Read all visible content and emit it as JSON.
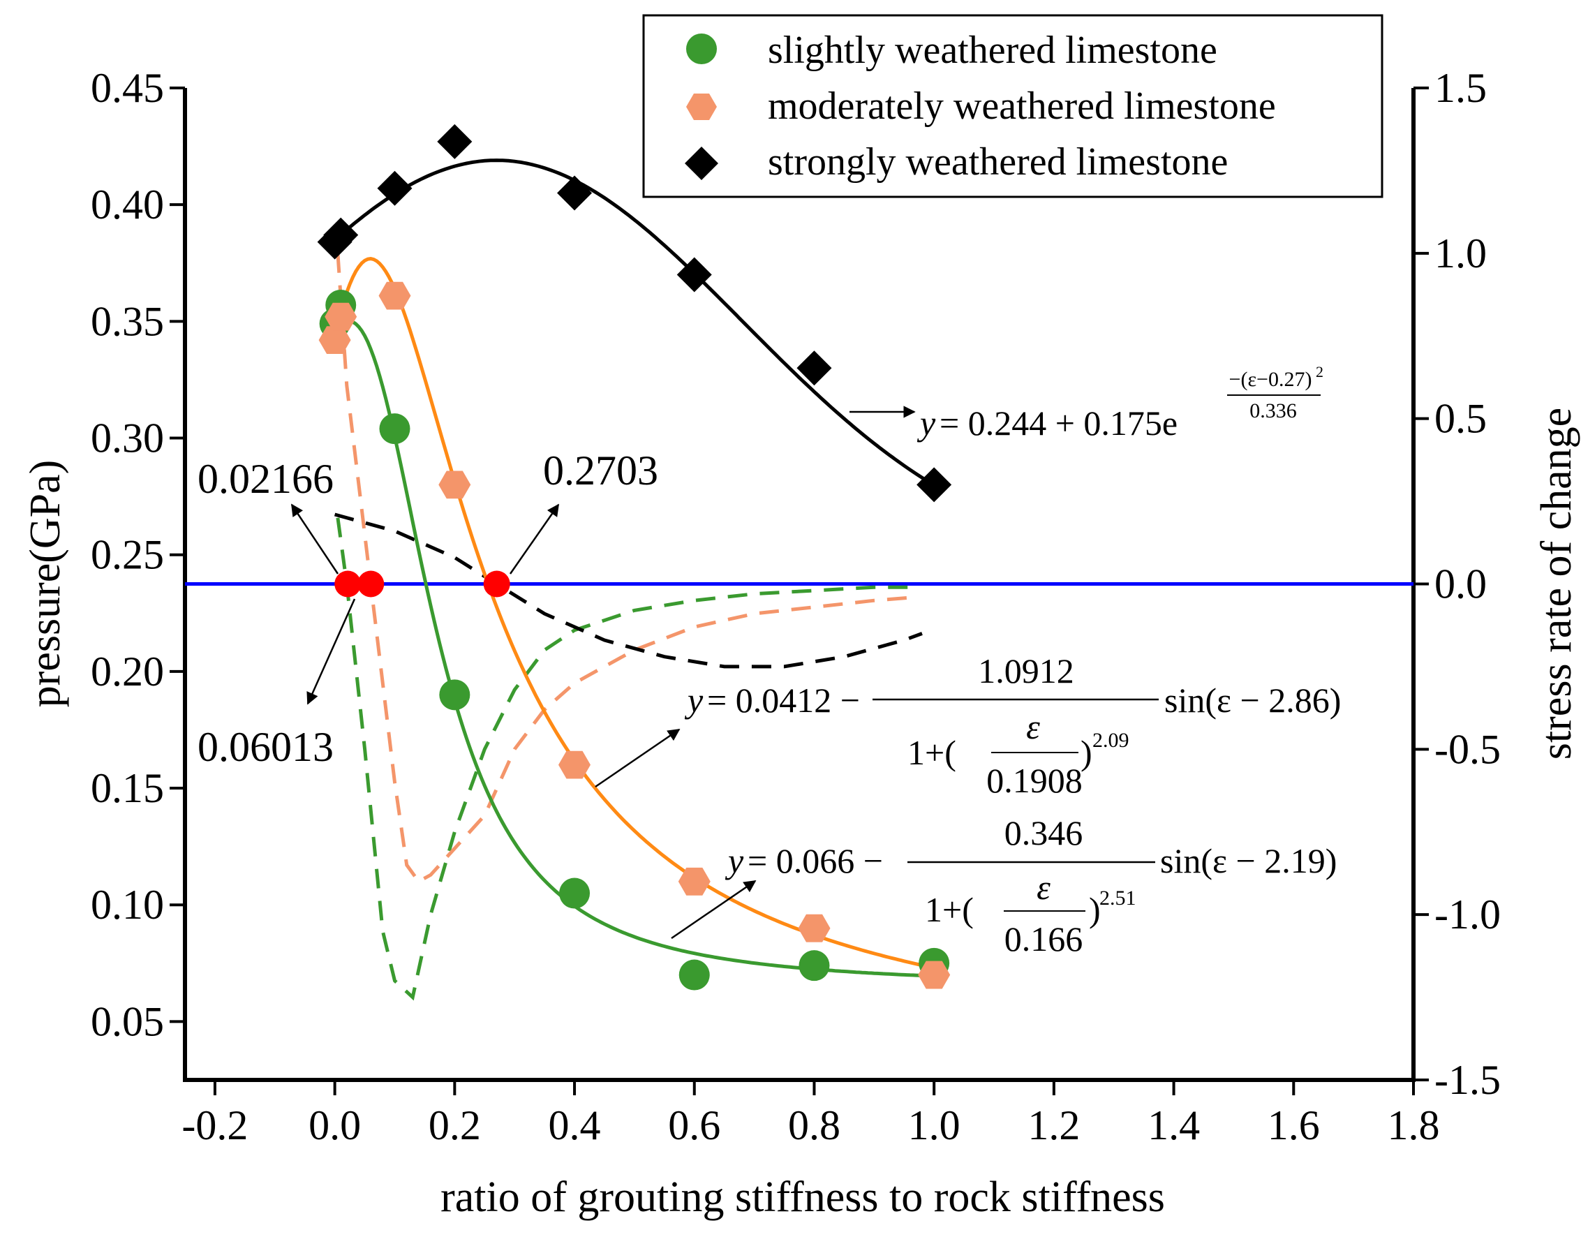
{
  "chart_data": {
    "type": "scatter",
    "xlabel": "ratio of grouting stiffness to rock stiffness",
    "ylabel": "pressure(GPa)",
    "y2label": "stress rate of change",
    "xlim": [
      -0.25,
      1.8
    ],
    "ylim": [
      0.025,
      0.45
    ],
    "y2lim": [
      -1.5,
      1.5
    ],
    "x_ticks": [
      "-0.2",
      "0.0",
      "0.2",
      "0.4",
      "0.6",
      "0.8",
      "1.0",
      "1.2",
      "1.4",
      "1.6",
      "1.8"
    ],
    "y_ticks": [
      "0.05",
      "0.10",
      "0.15",
      "0.20",
      "0.25",
      "0.30",
      "0.35",
      "0.40",
      "0.45"
    ],
    "y2_ticks": [
      "-1.5",
      "-1.0",
      "-0.5",
      "0.0",
      "0.5",
      "1.0",
      "1.5"
    ],
    "legend_position": "top-right",
    "series": [
      {
        "name": "slightly weathered limestone",
        "marker": "circle",
        "color": "#3a9a2f",
        "x": [
          0.0,
          0.01,
          0.1,
          0.2,
          0.4,
          0.6,
          0.8,
          1.0
        ],
        "y": [
          0.349,
          0.357,
          0.304,
          0.19,
          0.105,
          0.07,
          0.074,
          0.075
        ]
      },
      {
        "name": "moderately weathered limestone",
        "marker": "hexagon",
        "color": "#f4956a",
        "x": [
          0.0,
          0.01,
          0.1,
          0.2,
          0.4,
          0.6,
          0.8,
          1.0
        ],
        "y": [
          0.342,
          0.352,
          0.361,
          0.28,
          0.16,
          0.11,
          0.09,
          0.07
        ]
      },
      {
        "name": "strongly weathered limestone",
        "marker": "diamond",
        "color": "#000000",
        "x": [
          0.0,
          0.01,
          0.1,
          0.2,
          0.4,
          0.6,
          0.8,
          1.0
        ],
        "y": [
          0.384,
          0.387,
          0.407,
          0.427,
          0.405,
          0.37,
          0.33,
          0.28
        ]
      }
    ],
    "fit_curves": [
      {
        "name": "slightly weathered fit",
        "color": "#3a9a2f",
        "a": 0.066,
        "b": 0.346,
        "c": 0.166,
        "n": 2.51,
        "d": 2.19
      },
      {
        "name": "moderately weathered fit",
        "color": "#ff8a14",
        "a": 0.0412,
        "b": 1.0912,
        "c": 0.1908,
        "n": 2.09,
        "d": 2.86
      },
      {
        "name": "strongly weathered fit",
        "color": "#000000",
        "a": 0.244,
        "b": 0.175,
        "mu": 0.27,
        "s": 0.336
      }
    ],
    "rate_curves": [
      {
        "name": "slightly weathered rate",
        "color": "#3a9a2f",
        "x": [
          0.005,
          0.02,
          0.05,
          0.08,
          0.1,
          0.13,
          0.16,
          0.2,
          0.25,
          0.3,
          0.35,
          0.4,
          0.5,
          0.6,
          0.7,
          0.8,
          0.9,
          0.97
        ],
        "y": [
          0.2,
          0.0,
          -0.5,
          -1.05,
          -1.2,
          -1.25,
          -1.0,
          -0.75,
          -0.5,
          -0.32,
          -0.2,
          -0.14,
          -0.08,
          -0.05,
          -0.03,
          -0.02,
          -0.01,
          -0.01
        ]
      },
      {
        "name": "moderately weathered rate",
        "color": "#f4956a",
        "x": [
          0.005,
          0.02,
          0.04,
          0.06,
          0.08,
          0.1,
          0.12,
          0.14,
          0.16,
          0.2,
          0.25,
          0.3,
          0.35,
          0.4,
          0.5,
          0.6,
          0.7,
          0.8,
          0.9,
          0.97
        ],
        "y": [
          1.0,
          0.6,
          0.3,
          0.0,
          -0.3,
          -0.6,
          -0.85,
          -0.9,
          -0.88,
          -0.8,
          -0.7,
          -0.5,
          -0.38,
          -0.3,
          -0.2,
          -0.13,
          -0.09,
          -0.07,
          -0.05,
          -0.04
        ]
      },
      {
        "name": "strongly weathered rate",
        "color": "#000000",
        "x": [
          0.0,
          0.1,
          0.2,
          0.27,
          0.35,
          0.45,
          0.55,
          0.65,
          0.75,
          0.85,
          0.95,
          0.98
        ],
        "y": [
          0.21,
          0.16,
          0.08,
          0.0,
          -0.09,
          -0.17,
          -0.22,
          -0.25,
          -0.25,
          -0.22,
          -0.17,
          -0.15
        ]
      }
    ],
    "zero_line": {
      "y2": 0.0,
      "color": "#0000ff"
    },
    "crossing_points": [
      0.02166,
      0.06013,
      0.2703
    ],
    "annotations": [
      {
        "text": "0.02166",
        "color": "#3a9a2f"
      },
      {
        "text": "0.06013",
        "color": "#f4956a"
      },
      {
        "text": "0.2703",
        "color": "#000000"
      }
    ],
    "equations": {
      "strong": {
        "lhs": "y",
        "rhs": "= 0.244 + 0.175e",
        "exp_num": "−(ε−0.27)",
        "exp_pow": "2",
        "exp_den": "0.336"
      },
      "moderate": {
        "lhs": "y",
        "rhs": "= 0.0412 −",
        "num": "1.0912",
        "den_prefix": "1+(",
        "frac_num": "ε",
        "frac_den": "0.1908",
        "den_suffix": ")",
        "power": "2.09",
        "tail": "sin(ε − 2.86)"
      },
      "slight": {
        "lhs": "y",
        "rhs": "= 0.066 −",
        "num": "0.346",
        "den_prefix": "1+(",
        "frac_num": "ε",
        "frac_den": "0.166",
        "den_suffix": ")",
        "power": "2.51",
        "tail": "sin(ε − 2.19)"
      }
    }
  }
}
